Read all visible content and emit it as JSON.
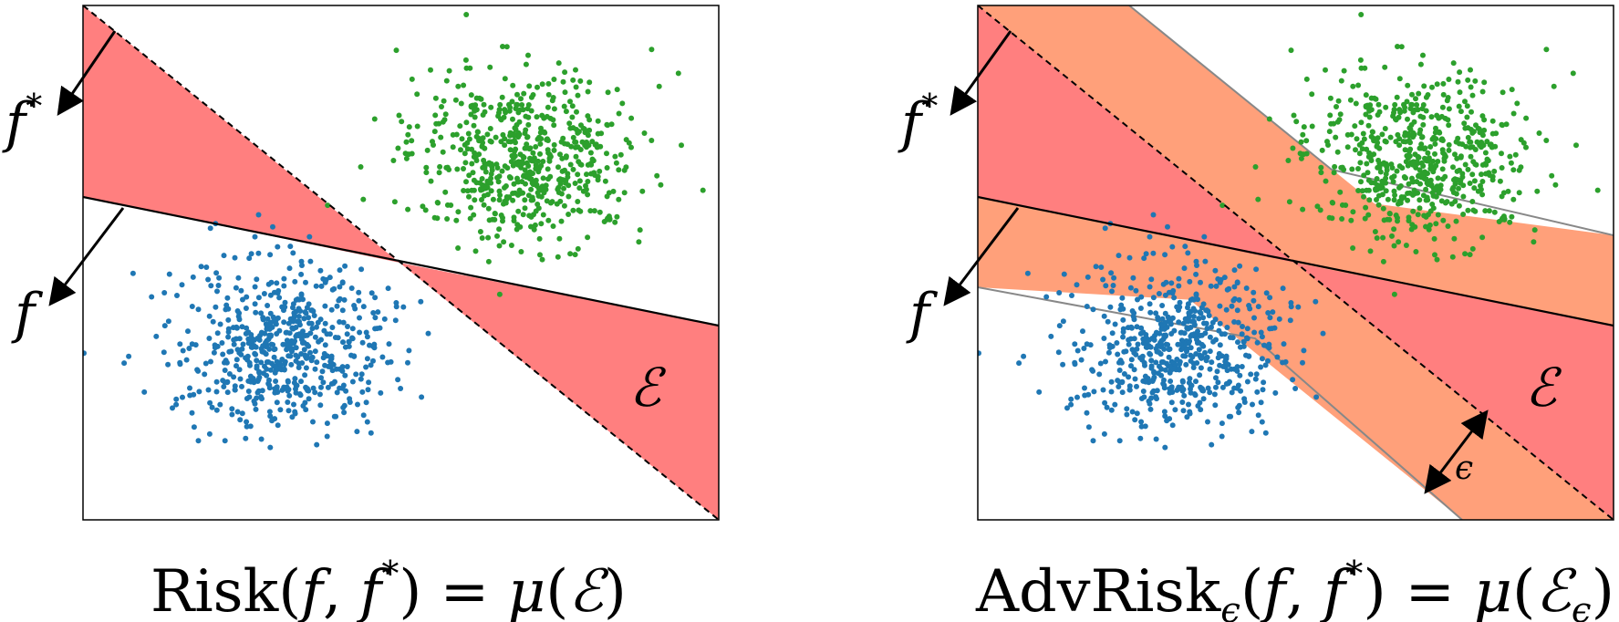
{
  "colors": {
    "error_red": "#ff7f7f",
    "adv_orange": "#ffa07a",
    "point_green": "#2ca02c",
    "point_blue": "#1f77b4",
    "frame": "#000000",
    "band_edge": "#888888"
  },
  "scatter": {
    "green_cluster": {
      "approx_points": 600
    },
    "blue_cluster": {
      "approx_points": 600
    }
  },
  "left_panel": {
    "label_fstar": "f",
    "label_fstar_sup": "*",
    "label_f": "f",
    "region_label": "ℰ",
    "caption": {
      "fn": "Risk",
      "open": "(",
      "f": "f",
      "comma": ", ",
      "f2": "f",
      "star": "*",
      "close_eq": ") = ",
      "mu": "μ",
      "open2": "(",
      "E": "ℰ",
      "close2": ")"
    }
  },
  "right_panel": {
    "label_fstar": "f",
    "label_fstar_sup": "*",
    "label_f": "f",
    "region_label": "ℰ",
    "eps_label": "ϵ",
    "caption": {
      "fn": "AdvRisk",
      "fn_sub": "ϵ",
      "open": "(",
      "f": "f",
      "comma": ", ",
      "f2": "f",
      "star": "*",
      "close_eq": ") = ",
      "mu": "μ",
      "open2": "(",
      "E": "ℰ",
      "E_sub": "ϵ",
      "close2": ")"
    }
  }
}
